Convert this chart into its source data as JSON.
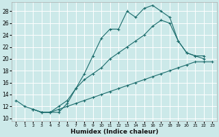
{
  "xlabel": "Humidex (Indice chaleur)",
  "bg_color": "#cce9e9",
  "grid_color": "#b0d8d8",
  "line_color": "#1a6b6b",
  "xlim": [
    -0.5,
    23.5
  ],
  "ylim": [
    9.5,
    29.5
  ],
  "xticks": [
    0,
    1,
    2,
    3,
    4,
    5,
    6,
    7,
    8,
    9,
    10,
    11,
    12,
    13,
    14,
    15,
    16,
    17,
    18,
    19,
    20,
    21,
    22,
    23
  ],
  "yticks": [
    10,
    12,
    14,
    16,
    18,
    20,
    22,
    24,
    26,
    28
  ],
  "curve1_x": [
    0,
    1,
    2,
    3,
    4,
    5,
    6,
    7,
    8,
    9,
    10,
    11,
    12,
    13,
    14,
    15,
    16,
    17,
    18,
    19,
    20,
    21,
    22
  ],
  "curve1_y": [
    13,
    12,
    11.5,
    11,
    11,
    11,
    12.5,
    15,
    17.5,
    20.5,
    23.5,
    25,
    25,
    28,
    27,
    28.5,
    29,
    28,
    27,
    23,
    21,
    20.5,
    20
  ],
  "curve2_x": [
    2,
    3,
    4,
    5,
    6,
    7,
    8,
    9,
    10,
    11,
    12,
    13,
    14,
    15,
    16,
    17,
    18,
    19,
    20,
    21,
    22
  ],
  "curve2_y": [
    11.5,
    11,
    11,
    12,
    13,
    15,
    16.5,
    17.5,
    18.5,
    20,
    21,
    22,
    23,
    24,
    25.5,
    26.5,
    26,
    23,
    21,
    20.5,
    20.5
  ],
  "curve3_x": [
    2,
    3,
    4,
    5,
    6,
    7,
    8,
    9,
    10,
    11,
    12,
    13,
    14,
    15,
    16,
    17,
    18,
    19,
    20,
    21,
    22,
    23
  ],
  "curve3_y": [
    11.5,
    11,
    11,
    11.5,
    12,
    12.5,
    13,
    13.5,
    14,
    14.5,
    15,
    15.5,
    16,
    16.5,
    17,
    17.5,
    18,
    18.5,
    19,
    19.5,
    19.5,
    19.5
  ]
}
